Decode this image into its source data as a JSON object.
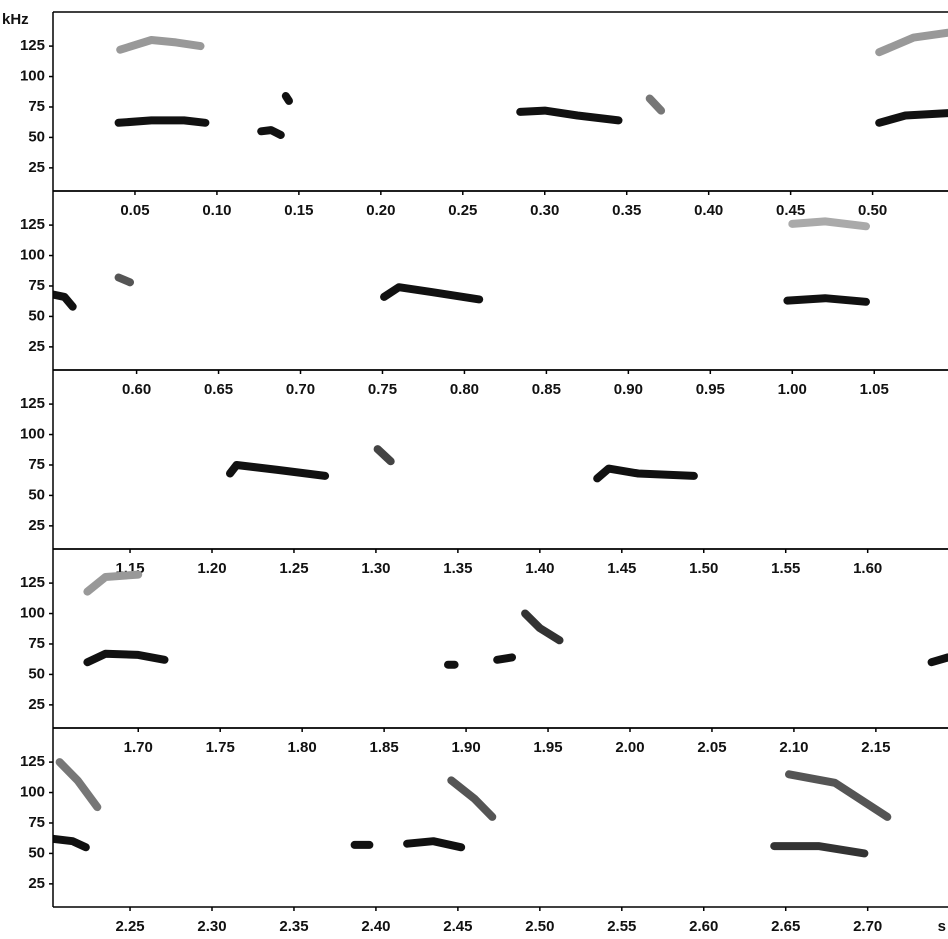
{
  "chart_data": [
    {
      "type": "spectrogram",
      "ylabel": "kHz",
      "xlim": [
        0,
        0.546
      ],
      "ylim": [
        6,
        153
      ],
      "xticks": [
        {
          "value": 0.05,
          "label": "0.05"
        },
        {
          "value": 0.1,
          "label": "0.10"
        },
        {
          "value": 0.15,
          "label": "0.15"
        },
        {
          "value": 0.2,
          "label": "0.20"
        },
        {
          "value": 0.25,
          "label": "0.25"
        },
        {
          "value": 0.3,
          "label": "0.30"
        },
        {
          "value": 0.35,
          "label": "0.35"
        },
        {
          "value": 0.4,
          "label": "0.40"
        },
        {
          "value": 0.45,
          "label": "0.45"
        },
        {
          "value": 0.5,
          "label": "0.50"
        }
      ],
      "yticks": [
        25,
        50,
        75,
        100,
        125
      ],
      "series": [
        {
          "color": "#999999",
          "x": [
            0.041,
            0.06,
            0.075,
            0.09
          ],
          "values": [
            122,
            130,
            128,
            125
          ]
        },
        {
          "color": "#111111",
          "x": [
            0.04,
            0.06,
            0.08,
            0.093
          ],
          "values": [
            62,
            64,
            64,
            62
          ]
        },
        {
          "color": "#111111",
          "x": [
            0.127,
            0.133,
            0.139
          ],
          "values": [
            55,
            56,
            52
          ]
        },
        {
          "color": "#111111",
          "x": [
            0.142,
            0.144
          ],
          "values": [
            84,
            80
          ]
        },
        {
          "color": "#111111",
          "x": [
            0.285,
            0.3,
            0.32,
            0.345
          ],
          "values": [
            71,
            72,
            68,
            64
          ]
        },
        {
          "color": "#777777",
          "x": [
            0.364,
            0.371
          ],
          "values": [
            82,
            72
          ]
        },
        {
          "color": "#111111",
          "x": [
            0.504,
            0.52,
            0.546
          ],
          "values": [
            62,
            68,
            70
          ]
        },
        {
          "color": "#999999",
          "x": [
            0.504,
            0.525,
            0.546
          ],
          "values": [
            120,
            132,
            136
          ]
        }
      ]
    },
    {
      "type": "spectrogram",
      "xlim": [
        0.549,
        1.095
      ],
      "ylim": [
        6,
        153
      ],
      "xticks": [
        {
          "value": 0.6,
          "label": "0.60"
        },
        {
          "value": 0.65,
          "label": "0.65"
        },
        {
          "value": 0.7,
          "label": "0.70"
        },
        {
          "value": 0.75,
          "label": "0.75"
        },
        {
          "value": 0.8,
          "label": "0.80"
        },
        {
          "value": 0.85,
          "label": "0.85"
        },
        {
          "value": 0.9,
          "label": "0.90"
        },
        {
          "value": 0.95,
          "label": "0.95"
        },
        {
          "value": 1.0,
          "label": "1.00"
        },
        {
          "value": 1.05,
          "label": "1.05"
        }
      ],
      "yticks": [
        25,
        50,
        75,
        100,
        125
      ],
      "series": [
        {
          "color": "#111111",
          "x": [
            0.549,
            0.556,
            0.561
          ],
          "values": [
            68,
            66,
            58
          ]
        },
        {
          "color": "#555555",
          "x": [
            0.589,
            0.596
          ],
          "values": [
            82,
            78
          ]
        },
        {
          "color": "#111111",
          "x": [
            0.751,
            0.76,
            0.78,
            0.809
          ],
          "values": [
            66,
            74,
            70,
            64
          ]
        },
        {
          "color": "#111111",
          "x": [
            0.997,
            1.02,
            1.045
          ],
          "values": [
            63,
            65,
            62
          ]
        },
        {
          "color": "#aaaaaa",
          "x": [
            1.0,
            1.02,
            1.045
          ],
          "values": [
            126,
            128,
            124
          ]
        }
      ]
    },
    {
      "type": "spectrogram",
      "xlim": [
        1.103,
        1.649
      ],
      "ylim": [
        6,
        153
      ],
      "xticks": [
        {
          "value": 1.15,
          "label": "1.15"
        },
        {
          "value": 1.2,
          "label": "1.20"
        },
        {
          "value": 1.25,
          "label": "1.25"
        },
        {
          "value": 1.3,
          "label": "1.30"
        },
        {
          "value": 1.35,
          "label": "1.35"
        },
        {
          "value": 1.4,
          "label": "1.40"
        },
        {
          "value": 1.45,
          "label": "1.45"
        },
        {
          "value": 1.5,
          "label": "1.50"
        },
        {
          "value": 1.55,
          "label": "1.55"
        },
        {
          "value": 1.6,
          "label": "1.60"
        }
      ],
      "yticks": [
        25,
        50,
        75,
        100,
        125
      ],
      "series": [
        {
          "color": "#111111",
          "x": [
            1.211,
            1.215,
            1.24,
            1.269
          ],
          "values": [
            68,
            75,
            71,
            66
          ]
        },
        {
          "color": "#444444",
          "x": [
            1.301,
            1.309
          ],
          "values": [
            88,
            78
          ]
        },
        {
          "color": "#111111",
          "x": [
            1.435,
            1.442,
            1.46,
            1.494
          ],
          "values": [
            64,
            72,
            68,
            66
          ]
        }
      ]
    },
    {
      "type": "spectrogram",
      "xlim": [
        1.648,
        2.194
      ],
      "ylim": [
        6,
        153
      ],
      "xticks": [
        {
          "value": 1.7,
          "label": "1.70"
        },
        {
          "value": 1.75,
          "label": "1.75"
        },
        {
          "value": 1.8,
          "label": "1.80"
        },
        {
          "value": 1.85,
          "label": "1.85"
        },
        {
          "value": 1.9,
          "label": "1.90"
        },
        {
          "value": 1.95,
          "label": "1.95"
        },
        {
          "value": 2.0,
          "label": "2.00"
        },
        {
          "value": 2.05,
          "label": "2.05"
        },
        {
          "value": 2.1,
          "label": "2.10"
        },
        {
          "value": 2.15,
          "label": "2.15"
        }
      ],
      "yticks": [
        25,
        50,
        75,
        100,
        125
      ],
      "series": [
        {
          "color": "#999999",
          "x": [
            1.669,
            1.68,
            1.7
          ],
          "values": [
            118,
            130,
            132
          ]
        },
        {
          "color": "#111111",
          "x": [
            1.669,
            1.68,
            1.7,
            1.716
          ],
          "values": [
            60,
            67,
            66,
            62
          ]
        },
        {
          "color": "#111111",
          "x": [
            1.889,
            1.893
          ],
          "values": [
            58,
            58
          ]
        },
        {
          "color": "#111111",
          "x": [
            1.919,
            1.928
          ],
          "values": [
            62,
            64
          ]
        },
        {
          "color": "#333333",
          "x": [
            1.936,
            1.945,
            1.957
          ],
          "values": [
            100,
            88,
            78
          ]
        },
        {
          "color": "#111111",
          "x": [
            2.184,
            2.194
          ],
          "values": [
            60,
            64
          ]
        }
      ]
    },
    {
      "type": "spectrogram",
      "xlabel": "s",
      "xlim": [
        2.203,
        2.749
      ],
      "ylim": [
        6,
        153
      ],
      "xticks": [
        {
          "value": 2.25,
          "label": "2.25"
        },
        {
          "value": 2.3,
          "label": "2.30"
        },
        {
          "value": 2.35,
          "label": "2.35"
        },
        {
          "value": 2.4,
          "label": "2.40"
        },
        {
          "value": 2.45,
          "label": "2.45"
        },
        {
          "value": 2.5,
          "label": "2.50"
        },
        {
          "value": 2.55,
          "label": "2.55"
        },
        {
          "value": 2.6,
          "label": "2.60"
        },
        {
          "value": 2.65,
          "label": "2.65"
        },
        {
          "value": 2.7,
          "label": "2.70"
        }
      ],
      "yticks": [
        25,
        50,
        75,
        100,
        125
      ],
      "series": [
        {
          "color": "#111111",
          "x": [
            2.203,
            2.215,
            2.223
          ],
          "values": [
            62,
            60,
            55
          ]
        },
        {
          "color": "#777777",
          "x": [
            2.207,
            2.218,
            2.23
          ],
          "values": [
            125,
            110,
            88
          ]
        },
        {
          "color": "#111111",
          "x": [
            2.387,
            2.396
          ],
          "values": [
            57,
            57
          ]
        },
        {
          "color": "#111111",
          "x": [
            2.419,
            2.435,
            2.452
          ],
          "values": [
            58,
            60,
            55
          ]
        },
        {
          "color": "#555555",
          "x": [
            2.446,
            2.46,
            2.471
          ],
          "values": [
            110,
            95,
            80
          ]
        },
        {
          "color": "#333333",
          "x": [
            2.643,
            2.67,
            2.698
          ],
          "values": [
            56,
            56,
            50
          ]
        },
        {
          "color": "#555555",
          "x": [
            2.652,
            2.68,
            2.712
          ],
          "values": [
            115,
            108,
            80
          ]
        }
      ]
    }
  ]
}
